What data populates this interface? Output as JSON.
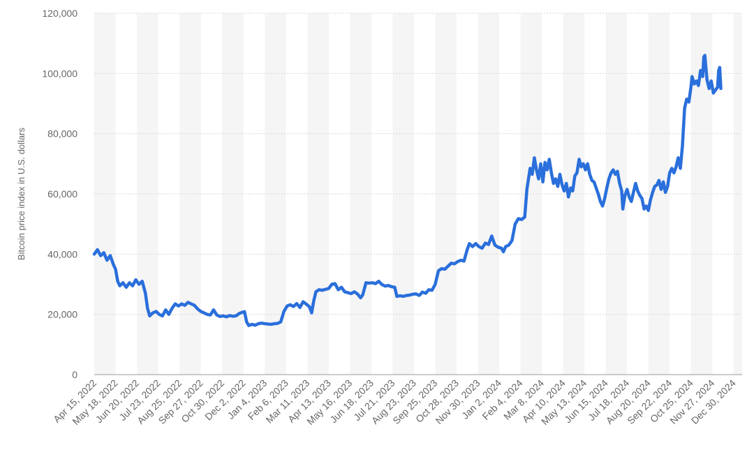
{
  "chart_data": {
    "type": "line",
    "title": "",
    "xlabel": "",
    "ylabel": "Bitcoin price index in U.S. dollars",
    "ylim": [
      0,
      120000
    ],
    "y_ticks": [
      0,
      20000,
      40000,
      60000,
      80000,
      100000,
      120000
    ],
    "y_tick_labels": [
      "0",
      "20,000",
      "40,000",
      "60,000",
      "80,000",
      "100,000",
      "120,000"
    ],
    "x_tick_labels": [
      "Apr 15, 2022",
      "May 18, 2022",
      "Jun 20, 2022",
      "Jul 23, 2022",
      "Aug 25, 2022",
      "Sep 27, 2022",
      "Oct 30, 2022",
      "Dec 2, 2022",
      "Jan 4, 2023",
      "Feb 6, 2023",
      "Mar 11, 2023",
      "Apr 13, 2023",
      "May 16, 2023",
      "Jun 18, 2023",
      "Jul 21, 2023",
      "Aug 23, 2023",
      "Sep 25, 2023",
      "Oct 28, 2023",
      "Nov 30, 2023",
      "Jan 2, 2024",
      "Feb 4, 2024",
      "Mar 8, 2024",
      "Apr 10, 2024",
      "May 13, 2024",
      "Jun 15, 2024",
      "Jul 18, 2024",
      "Aug 20, 2024",
      "Sep 22, 2024",
      "Oct 25, 2024",
      "Nov 27, 2024",
      "Dec 30, 2024"
    ],
    "grid": true,
    "line_color": "#2a6fdb",
    "band_color": "#f5f5f5",
    "series": [
      {
        "values": [
          [
            0,
            40000
          ],
          [
            0.15,
            41500
          ],
          [
            0.3,
            39500
          ],
          [
            0.45,
            40500
          ],
          [
            0.6,
            38000
          ],
          [
            0.75,
            39500
          ],
          [
            0.9,
            36500
          ],
          [
            1.0,
            35000
          ],
          [
            1.1,
            31000
          ],
          [
            1.2,
            29500
          ],
          [
            1.35,
            30500
          ],
          [
            1.5,
            29000
          ],
          [
            1.65,
            30500
          ],
          [
            1.8,
            29500
          ],
          [
            1.95,
            31500
          ],
          [
            2.1,
            30000
          ],
          [
            2.25,
            31000
          ],
          [
            2.4,
            27000
          ],
          [
            2.5,
            22000
          ],
          [
            2.6,
            19500
          ],
          [
            2.75,
            20500
          ],
          [
            2.9,
            21000
          ],
          [
            3.05,
            20000
          ],
          [
            3.2,
            19500
          ],
          [
            3.35,
            21500
          ],
          [
            3.5,
            20000
          ],
          [
            3.65,
            22000
          ],
          [
            3.8,
            23500
          ],
          [
            3.95,
            22800
          ],
          [
            4.1,
            23500
          ],
          [
            4.25,
            23000
          ],
          [
            4.4,
            24000
          ],
          [
            4.55,
            23500
          ],
          [
            4.7,
            23000
          ],
          [
            4.85,
            21800
          ],
          [
            5.0,
            21000
          ],
          [
            5.15,
            20500
          ],
          [
            5.3,
            20000
          ],
          [
            5.45,
            19800
          ],
          [
            5.6,
            21500
          ],
          [
            5.75,
            19800
          ],
          [
            5.9,
            19300
          ],
          [
            6.05,
            19500
          ],
          [
            6.2,
            19200
          ],
          [
            6.35,
            19600
          ],
          [
            6.5,
            19400
          ],
          [
            6.65,
            19500
          ],
          [
            6.8,
            20300
          ],
          [
            6.95,
            20700
          ],
          [
            7.05,
            20900
          ],
          [
            7.15,
            17500
          ],
          [
            7.25,
            16300
          ],
          [
            7.4,
            16700
          ],
          [
            7.55,
            16400
          ],
          [
            7.7,
            16900
          ],
          [
            7.85,
            17100
          ],
          [
            8.0,
            16900
          ],
          [
            8.15,
            16800
          ],
          [
            8.3,
            16700
          ],
          [
            8.45,
            16900
          ],
          [
            8.6,
            17000
          ],
          [
            8.75,
            17500
          ],
          [
            8.9,
            21000
          ],
          [
            9.05,
            22800
          ],
          [
            9.2,
            23200
          ],
          [
            9.35,
            22600
          ],
          [
            9.5,
            23600
          ],
          [
            9.65,
            22300
          ],
          [
            9.8,
            24200
          ],
          [
            9.95,
            23400
          ],
          [
            10.1,
            22500
          ],
          [
            10.2,
            20500
          ],
          [
            10.3,
            24500
          ],
          [
            10.4,
            27500
          ],
          [
            10.55,
            28200
          ],
          [
            10.7,
            28000
          ],
          [
            10.85,
            28300
          ],
          [
            11.0,
            28600
          ],
          [
            11.15,
            30000
          ],
          [
            11.3,
            30200
          ],
          [
            11.45,
            28200
          ],
          [
            11.6,
            29000
          ],
          [
            11.75,
            27500
          ],
          [
            11.9,
            27200
          ],
          [
            12.05,
            26900
          ],
          [
            12.2,
            27500
          ],
          [
            12.35,
            26800
          ],
          [
            12.5,
            25500
          ],
          [
            12.6,
            26500
          ],
          [
            12.75,
            30500
          ],
          [
            12.9,
            30400
          ],
          [
            13.05,
            30500
          ],
          [
            13.2,
            30200
          ],
          [
            13.35,
            31000
          ],
          [
            13.5,
            29900
          ],
          [
            13.65,
            29400
          ],
          [
            13.8,
            29600
          ],
          [
            13.95,
            29200
          ],
          [
            14.1,
            29000
          ],
          [
            14.2,
            26000
          ],
          [
            14.35,
            26200
          ],
          [
            14.5,
            26000
          ],
          [
            14.65,
            26300
          ],
          [
            14.8,
            26400
          ],
          [
            14.95,
            26700
          ],
          [
            15.1,
            26800
          ],
          [
            15.25,
            26300
          ],
          [
            15.4,
            27400
          ],
          [
            15.55,
            27000
          ],
          [
            15.7,
            28200
          ],
          [
            15.85,
            28000
          ],
          [
            16.0,
            30000
          ],
          [
            16.15,
            34500
          ],
          [
            16.3,
            35200
          ],
          [
            16.45,
            35000
          ],
          [
            16.6,
            36000
          ],
          [
            16.75,
            37000
          ],
          [
            16.9,
            36800
          ],
          [
            17.05,
            37500
          ],
          [
            17.2,
            38000
          ],
          [
            17.35,
            37700
          ],
          [
            17.5,
            41500
          ],
          [
            17.6,
            43500
          ],
          [
            17.75,
            42500
          ],
          [
            17.9,
            43500
          ],
          [
            18.05,
            42500
          ],
          [
            18.2,
            42000
          ],
          [
            18.35,
            43700
          ],
          [
            18.5,
            43200
          ],
          [
            18.65,
            46000
          ],
          [
            18.8,
            43000
          ],
          [
            18.95,
            42300
          ],
          [
            19.1,
            42000
          ],
          [
            19.2,
            40800
          ],
          [
            19.3,
            42500
          ],
          [
            19.45,
            43000
          ],
          [
            19.6,
            44500
          ],
          [
            19.75,
            50000
          ],
          [
            19.9,
            51800
          ],
          [
            20.05,
            51500
          ],
          [
            20.2,
            52300
          ],
          [
            20.3,
            61500
          ],
          [
            20.45,
            68500
          ],
          [
            20.55,
            66500
          ],
          [
            20.65,
            72000
          ],
          [
            20.75,
            68000
          ],
          [
            20.85,
            65000
          ],
          [
            20.95,
            70000
          ],
          [
            21.05,
            64000
          ],
          [
            21.15,
            70500
          ],
          [
            21.25,
            68000
          ],
          [
            21.35,
            71500
          ],
          [
            21.45,
            67000
          ],
          [
            21.55,
            63500
          ],
          [
            21.65,
            65000
          ],
          [
            21.75,
            62500
          ],
          [
            21.85,
            66500
          ],
          [
            21.95,
            63000
          ],
          [
            22.05,
            61000
          ],
          [
            22.15,
            63500
          ],
          [
            22.25,
            59000
          ],
          [
            22.35,
            62000
          ],
          [
            22.45,
            61000
          ],
          [
            22.55,
            66000
          ],
          [
            22.65,
            67000
          ],
          [
            22.75,
            71500
          ],
          [
            22.85,
            69000
          ],
          [
            22.95,
            70000
          ],
          [
            23.05,
            68000
          ],
          [
            23.15,
            70000
          ],
          [
            23.25,
            66500
          ],
          [
            23.35,
            64500
          ],
          [
            23.45,
            64000
          ],
          [
            23.55,
            62000
          ],
          [
            23.65,
            60000
          ],
          [
            23.75,
            57500
          ],
          [
            23.85,
            56000
          ],
          [
            23.95,
            58500
          ],
          [
            24.05,
            62000
          ],
          [
            24.15,
            65000
          ],
          [
            24.25,
            67000
          ],
          [
            24.35,
            68000
          ],
          [
            24.45,
            66500
          ],
          [
            24.55,
            67500
          ],
          [
            24.65,
            63500
          ],
          [
            24.75,
            61000
          ],
          [
            24.8,
            55000
          ],
          [
            24.9,
            59500
          ],
          [
            25.0,
            61500
          ],
          [
            25.1,
            59000
          ],
          [
            25.2,
            57500
          ],
          [
            25.3,
            60500
          ],
          [
            25.4,
            63500
          ],
          [
            25.5,
            61000
          ],
          [
            25.6,
            59500
          ],
          [
            25.7,
            58500
          ],
          [
            25.8,
            55000
          ],
          [
            25.9,
            56000
          ],
          [
            26.0,
            54500
          ],
          [
            26.1,
            58000
          ],
          [
            26.2,
            60500
          ],
          [
            26.3,
            62500
          ],
          [
            26.4,
            63000
          ],
          [
            26.5,
            64500
          ],
          [
            26.6,
            61500
          ],
          [
            26.7,
            64000
          ],
          [
            26.8,
            60500
          ],
          [
            26.9,
            62500
          ],
          [
            27.0,
            67000
          ],
          [
            27.1,
            68500
          ],
          [
            27.2,
            67000
          ],
          [
            27.3,
            69000
          ],
          [
            27.4,
            72000
          ],
          [
            27.5,
            68500
          ],
          [
            27.6,
            76000
          ],
          [
            27.7,
            88500
          ],
          [
            27.8,
            91500
          ],
          [
            27.9,
            90500
          ],
          [
            28.0,
            95500
          ],
          [
            28.05,
            99000
          ],
          [
            28.15,
            96500
          ],
          [
            28.25,
            97500
          ],
          [
            28.35,
            96000
          ],
          [
            28.45,
            101000
          ],
          [
            28.55,
            99000
          ],
          [
            28.6,
            105500
          ],
          [
            28.65,
            106000
          ],
          [
            28.75,
            98000
          ],
          [
            28.85,
            95000
          ],
          [
            28.95,
            97500
          ],
          [
            29.05,
            93500
          ],
          [
            29.15,
            94500
          ],
          [
            29.25,
            95500
          ],
          [
            29.3,
            101000
          ],
          [
            29.35,
            102000
          ],
          [
            29.4,
            95000
          ]
        ]
      }
    ]
  }
}
